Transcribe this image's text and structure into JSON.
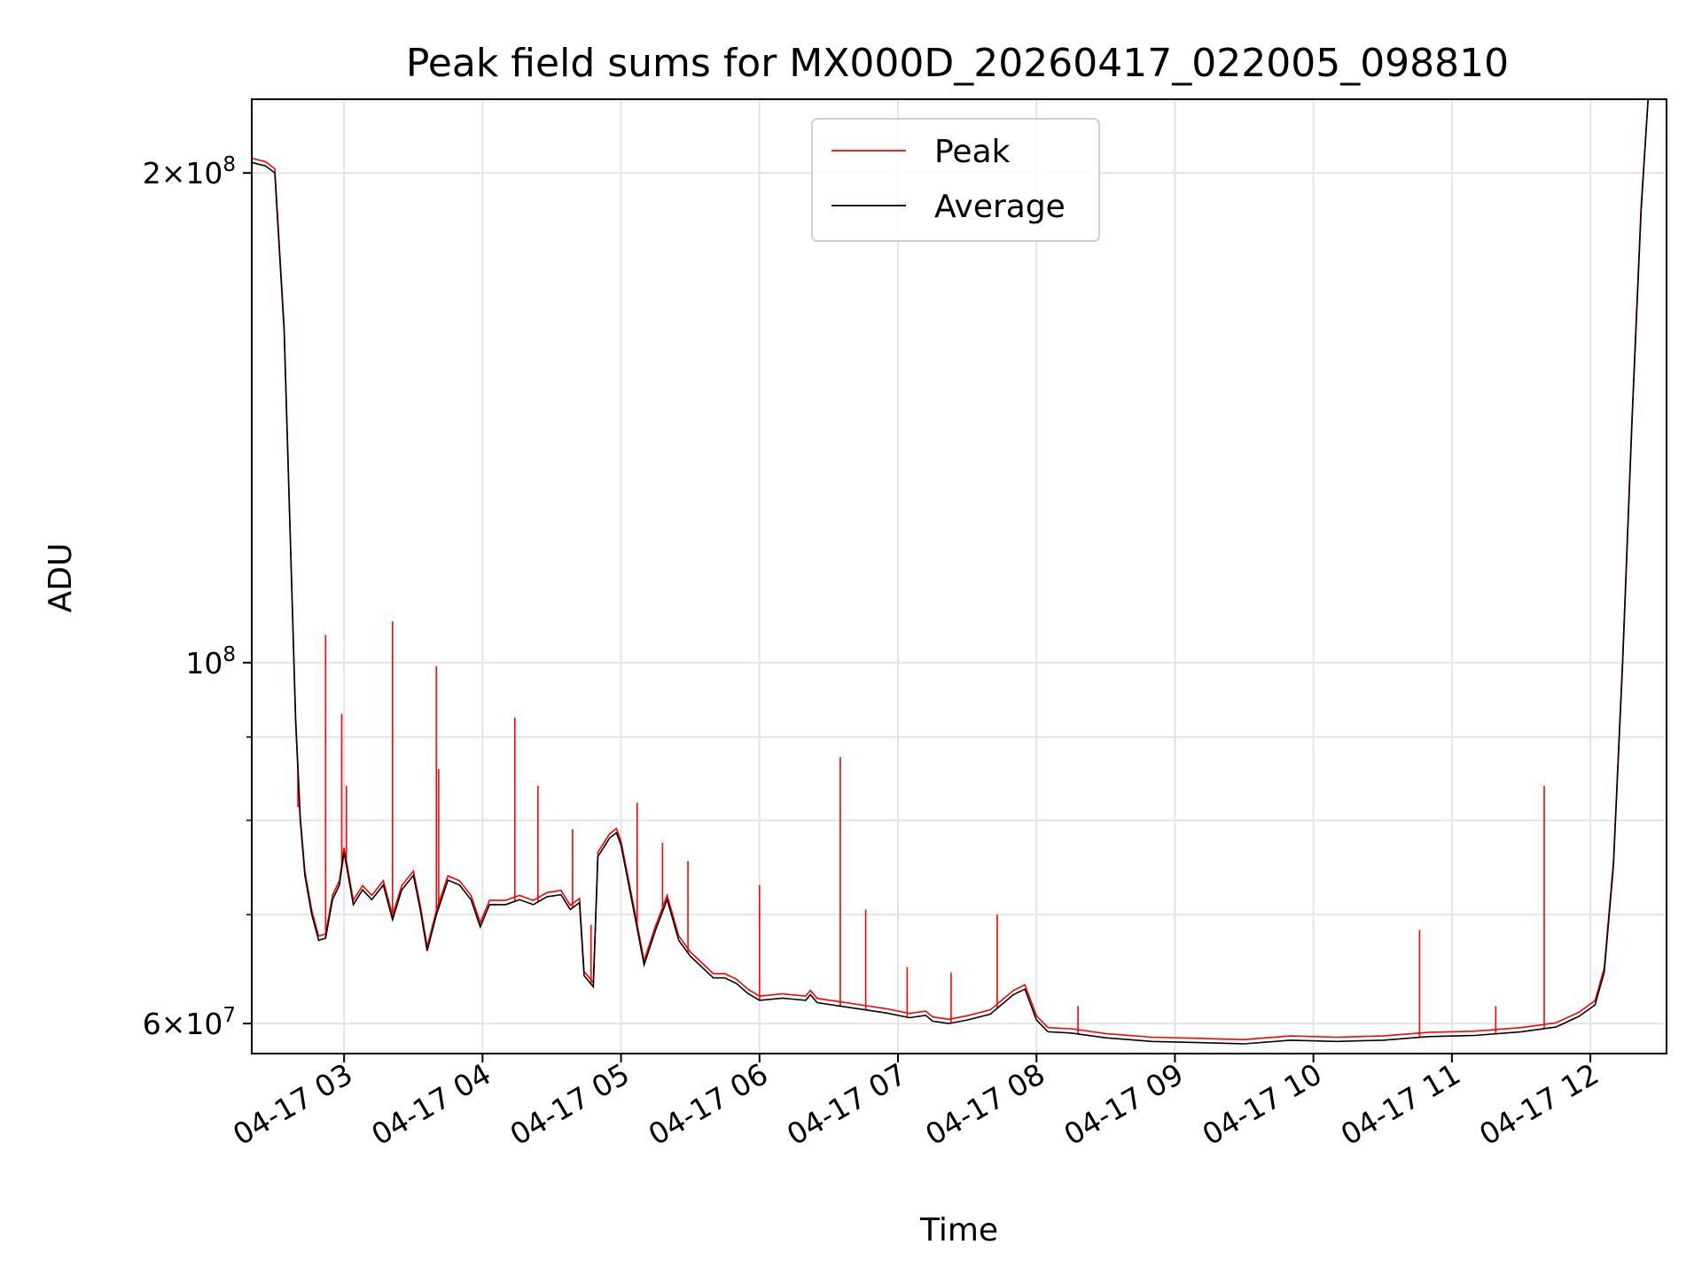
{
  "chart_data": {
    "type": "line",
    "title": "Peak field sums for MX000D_20260417_022005_098810",
    "xlabel": "Time",
    "ylabel": "ADU",
    "yscale": "log",
    "xlim": [
      "2026-04-17 02:20",
      "2026-04-17 12:33"
    ],
    "ylim": [
      57500000,
      222000000
    ],
    "grid": true,
    "legend_position": "top-center",
    "x_ticks": [
      {
        "t": "2026-04-17 03:00",
        "label": "04-17 03"
      },
      {
        "t": "2026-04-17 04:00",
        "label": "04-17 04"
      },
      {
        "t": "2026-04-17 05:00",
        "label": "04-17 05"
      },
      {
        "t": "2026-04-17 06:00",
        "label": "04-17 06"
      },
      {
        "t": "2026-04-17 07:00",
        "label": "04-17 07"
      },
      {
        "t": "2026-04-17 08:00",
        "label": "04-17 08"
      },
      {
        "t": "2026-04-17 09:00",
        "label": "04-17 09"
      },
      {
        "t": "2026-04-17 10:00",
        "label": "04-17 10"
      },
      {
        "t": "2026-04-17 11:00",
        "label": "04-17 11"
      },
      {
        "t": "2026-04-17 12:00",
        "label": "04-17 12"
      }
    ],
    "y_ticks": [
      {
        "value": 60000000,
        "mantissa": "6",
        "exponent": "7"
      },
      {
        "value": 100000000,
        "mantissa": "",
        "exponent": "8"
      },
      {
        "value": 200000000,
        "mantissa": "2",
        "exponent": "8"
      }
    ],
    "y_minor_ticks": [
      70000000,
      80000000,
      90000000
    ],
    "series": [
      {
        "name": "Average",
        "color": "#000000",
        "points": [
          [
            "2026-04-17 02:20",
            203000000
          ],
          [
            "2026-04-17 02:26",
            202000000
          ],
          [
            "2026-04-17 02:30",
            200000000
          ],
          [
            "2026-04-17 02:34",
            160000000
          ],
          [
            "2026-04-17 02:37",
            115000000
          ],
          [
            "2026-04-17 02:39",
            92000000
          ],
          [
            "2026-04-17 02:41",
            80000000
          ],
          [
            "2026-04-17 02:43",
            74000000
          ],
          [
            "2026-04-17 02:46",
            70000000
          ],
          [
            "2026-04-17 02:49",
            67500000
          ],
          [
            "2026-04-17 02:52",
            67700000
          ],
          [
            "2026-04-17 02:55",
            71500000
          ],
          [
            "2026-04-17 02:58",
            73000000
          ],
          [
            "2026-04-17 03:00",
            76500000
          ],
          [
            "2026-04-17 03:04",
            71000000
          ],
          [
            "2026-04-17 03:08",
            72500000
          ],
          [
            "2026-04-17 03:12",
            71500000
          ],
          [
            "2026-04-17 03:17",
            73000000
          ],
          [
            "2026-04-17 03:21",
            69500000
          ],
          [
            "2026-04-17 03:25",
            72500000
          ],
          [
            "2026-04-17 03:30",
            74000000
          ],
          [
            "2026-04-17 03:33",
            70500000
          ],
          [
            "2026-04-17 03:36",
            66500000
          ],
          [
            "2026-04-17 03:40",
            70000000
          ],
          [
            "2026-04-17 03:45",
            73500000
          ],
          [
            "2026-04-17 03:50",
            73000000
          ],
          [
            "2026-04-17 03:55",
            71500000
          ],
          [
            "2026-04-17 03:59",
            68800000
          ],
          [
            "2026-04-17 04:03",
            71000000
          ],
          [
            "2026-04-17 04:10",
            71000000
          ],
          [
            "2026-04-17 04:16",
            71500000
          ],
          [
            "2026-04-17 04:22",
            71000000
          ],
          [
            "2026-04-17 04:28",
            71800000
          ],
          [
            "2026-04-17 04:34",
            72000000
          ],
          [
            "2026-04-17 04:38",
            70500000
          ],
          [
            "2026-04-17 04:42",
            71200000
          ],
          [
            "2026-04-17 04:44",
            64200000
          ],
          [
            "2026-04-17 04:48",
            63200000
          ],
          [
            "2026-04-17 04:50",
            76000000
          ],
          [
            "2026-04-17 04:55",
            78000000
          ],
          [
            "2026-04-17 04:58",
            78600000
          ],
          [
            "2026-04-17 05:00",
            77200000
          ],
          [
            "2026-04-17 05:05",
            71000000
          ],
          [
            "2026-04-17 05:10",
            65200000
          ],
          [
            "2026-04-17 05:15",
            68500000
          ],
          [
            "2026-04-17 05:20",
            71500000
          ],
          [
            "2026-04-17 05:25",
            67500000
          ],
          [
            "2026-04-17 05:30",
            66000000
          ],
          [
            "2026-04-17 05:35",
            65000000
          ],
          [
            "2026-04-17 05:40",
            64000000
          ],
          [
            "2026-04-17 05:45",
            64000000
          ],
          [
            "2026-04-17 05:50",
            63500000
          ],
          [
            "2026-04-17 05:55",
            62600000
          ],
          [
            "2026-04-17 06:00",
            62000000
          ],
          [
            "2026-04-17 06:10",
            62200000
          ],
          [
            "2026-04-17 06:20",
            62000000
          ],
          [
            "2026-04-17 06:22",
            62500000
          ],
          [
            "2026-04-17 06:25",
            61800000
          ],
          [
            "2026-04-17 06:35",
            61500000
          ],
          [
            "2026-04-17 06:45",
            61200000
          ],
          [
            "2026-04-17 06:55",
            60900000
          ],
          [
            "2026-04-17 07:05",
            60500000
          ],
          [
            "2026-04-17 07:12",
            60700000
          ],
          [
            "2026-04-17 07:15",
            60200000
          ],
          [
            "2026-04-17 07:22",
            60000000
          ],
          [
            "2026-04-17 07:30",
            60300000
          ],
          [
            "2026-04-17 07:40",
            60800000
          ],
          [
            "2026-04-17 07:50",
            62500000
          ],
          [
            "2026-04-17 07:55",
            63000000
          ],
          [
            "2026-04-17 08:00",
            60300000
          ],
          [
            "2026-04-17 08:05",
            59300000
          ],
          [
            "2026-04-17 08:15",
            59200000
          ],
          [
            "2026-04-17 08:30",
            58800000
          ],
          [
            "2026-04-17 08:50",
            58500000
          ],
          [
            "2026-04-17 09:10",
            58400000
          ],
          [
            "2026-04-17 09:30",
            58300000
          ],
          [
            "2026-04-17 09:50",
            58600000
          ],
          [
            "2026-04-17 10:10",
            58500000
          ],
          [
            "2026-04-17 10:30",
            58600000
          ],
          [
            "2026-04-17 10:50",
            58900000
          ],
          [
            "2026-04-17 11:10",
            59000000
          ],
          [
            "2026-04-17 11:30",
            59300000
          ],
          [
            "2026-04-17 11:45",
            59700000
          ],
          [
            "2026-04-17 11:55",
            60600000
          ],
          [
            "2026-04-17 12:02",
            61600000
          ],
          [
            "2026-04-17 12:06",
            64500000
          ],
          [
            "2026-04-17 12:10",
            75000000
          ],
          [
            "2026-04-17 12:14",
            100000000
          ],
          [
            "2026-04-17 12:18",
            140000000
          ],
          [
            "2026-04-17 12:22",
            190000000
          ],
          [
            "2026-04-17 12:25",
            222000000
          ]
        ]
      },
      {
        "name": "Peak",
        "color": "#ff0000",
        "spikes": [
          [
            "2026-04-17 02:40",
            81500000
          ],
          [
            "2026-04-17 02:52",
            104000000
          ],
          [
            "2026-04-17 02:59",
            93000000
          ],
          [
            "2026-04-17 03:01",
            84000000
          ],
          [
            "2026-04-17 03:21",
            106000000
          ],
          [
            "2026-04-17 03:40",
            99500000
          ],
          [
            "2026-04-17 03:41",
            86000000
          ],
          [
            "2026-04-17 04:14",
            92500000
          ],
          [
            "2026-04-17 04:24",
            84000000
          ],
          [
            "2026-04-17 04:39",
            79000000
          ],
          [
            "2026-04-17 04:47",
            69000000
          ],
          [
            "2026-04-17 05:07",
            82000000
          ],
          [
            "2026-04-17 05:18",
            77500000
          ],
          [
            "2026-04-17 05:29",
            75500000
          ],
          [
            "2026-04-17 06:00",
            73000000
          ],
          [
            "2026-04-17 06:35",
            87500000
          ],
          [
            "2026-04-17 06:46",
            70500000
          ],
          [
            "2026-04-17 07:04",
            65000000
          ],
          [
            "2026-04-17 07:23",
            64500000
          ],
          [
            "2026-04-17 07:43",
            70000000
          ],
          [
            "2026-04-17 08:18",
            61500000
          ],
          [
            "2026-04-17 10:46",
            68500000
          ],
          [
            "2026-04-17 11:19",
            61500000
          ],
          [
            "2026-04-17 11:40",
            84000000
          ]
        ]
      }
    ]
  }
}
